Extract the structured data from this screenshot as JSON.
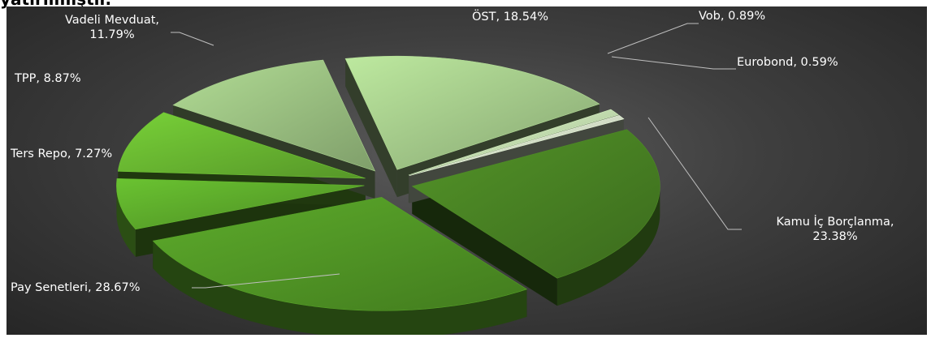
{
  "page": {
    "cutoff_text": "yatırılmıştır."
  },
  "chart_data": {
    "type": "pie",
    "title": "",
    "style": "3d-exploded",
    "slices": [
      {
        "label": "Kamu İç Borçlanma",
        "value": 23.38,
        "display": "23.38%",
        "color": "#4a8424"
      },
      {
        "label": "Pay Senetleri",
        "value": 28.67,
        "display": "28.67%",
        "color": "#539a26"
      },
      {
        "label": "Ters Repo",
        "value": 7.27,
        "display": "7.27%",
        "color": "#5fae2c"
      },
      {
        "label": "TPP",
        "value": 8.87,
        "display": "8.87%",
        "color": "#6bbb32"
      },
      {
        "label": "Vadeli Mevduat",
        "value": 11.79,
        "display": "11.79%",
        "color": "#9fc585"
      },
      {
        "label": "ÖST",
        "value": 18.54,
        "display": "18.54%",
        "color": "#a9d08e"
      },
      {
        "label": "Vob",
        "value": 0.89,
        "display": "0.89%",
        "color": "#c8e3b4"
      },
      {
        "label": "Eurobond",
        "value": 0.59,
        "display": "0.59%",
        "color": "#dcebcf"
      }
    ]
  }
}
